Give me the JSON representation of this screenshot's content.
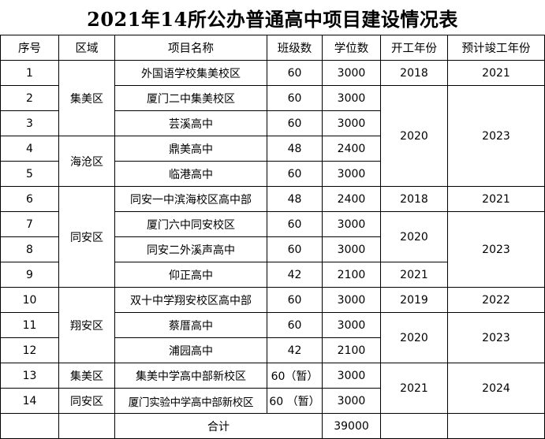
{
  "title": "2021年14所公办普通高中项目建设情况表",
  "headers": [
    "序号",
    "区域",
    "项目名称",
    "班级数",
    "学位数",
    "开工年份",
    "预计竣工年份"
  ],
  "rows": [
    {
      "no": "1",
      "name": "外国语学校集美校区",
      "classes": "60",
      "seats": "3000"
    },
    {
      "no": "2",
      "name": "厦门二中集美校区",
      "classes": "60",
      "seats": "3000"
    },
    {
      "no": "3",
      "name": "芸溪高中",
      "classes": "60",
      "seats": "3000"
    },
    {
      "no": "4",
      "name": "鼎美高中",
      "classes": "48",
      "seats": "2400"
    },
    {
      "no": "5",
      "name": "临港高中",
      "classes": "60",
      "seats": "3000"
    },
    {
      "no": "6",
      "name": "同安一中滨海校区高中部",
      "classes": "48",
      "seats": "2400"
    },
    {
      "no": "7",
      "name": "厦门六中同安校区",
      "classes": "60",
      "seats": "3000"
    },
    {
      "no": "8",
      "name": "同安二外溪声高中",
      "classes": "60",
      "seats": "3000"
    },
    {
      "no": "9",
      "name": "仰正高中",
      "classes": "42",
      "seats": "2100"
    },
    {
      "no": "10",
      "name": "双十中学翔安校区高中部",
      "classes": "60",
      "seats": "3000"
    },
    {
      "no": "11",
      "name": "蔡厝高中",
      "classes": "60",
      "seats": "3000"
    },
    {
      "no": "12",
      "name": "浦园高中",
      "classes": "42",
      "seats": "2100"
    },
    {
      "no": "13",
      "name": "集美中学高中部新校区",
      "classes": "60（暂）",
      "seats": "3000"
    },
    {
      "no": "14",
      "name": "厦门实验中学高中部新校区",
      "classes": "60 （暂）",
      "seats": "3000"
    }
  ],
  "regions": {
    "r1": "集美区",
    "r2": "海沧区",
    "r3": "同安区",
    "r4": "翔安区",
    "r5": "集美区",
    "r6": "同安区"
  },
  "years": {
    "start_1": "2018",
    "end_1": "2021",
    "start_2_5": "2020",
    "end_2_5": "2023",
    "start_6": "2018",
    "end_6": "2021",
    "start_7_8": "2020",
    "end_7_9": "2023",
    "start_9": "2021",
    "start_10": "2019",
    "end_10": "2022",
    "start_11_12": "2020",
    "end_11_12": "2023",
    "start_13_14": "2021",
    "end_13_14": "2024"
  },
  "total": {
    "label": "合计",
    "seats": "39000"
  }
}
